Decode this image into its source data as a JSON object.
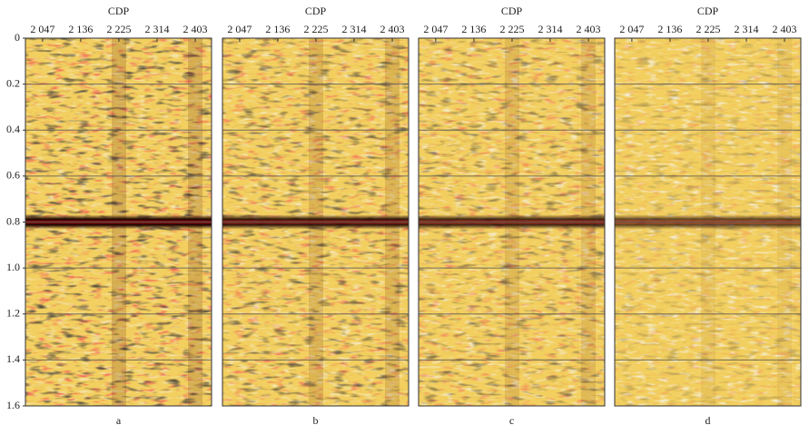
{
  "chart_data": [
    {
      "type": "seismic",
      "xlabel": "CDP",
      "caption": "a",
      "xlim": [
        2007,
        2441
      ],
      "xticks": [
        {
          "value": 2047,
          "label": "2 047"
        },
        {
          "value": 2136,
          "label": "2 136"
        },
        {
          "value": 2225,
          "label": "2 225"
        },
        {
          "value": 2314,
          "label": "2 314"
        },
        {
          "value": 2403,
          "label": "2 403"
        }
      ],
      "ylim": [
        0,
        1.6
      ],
      "yticks": [
        0,
        0.2,
        0.4,
        0.6,
        0.8,
        {
          "value": 1,
          "label": "1.0"
        },
        1.2,
        1.4,
        1.6
      ],
      "grid": true
    },
    {
      "type": "seismic",
      "xlabel": "CDP",
      "caption": "b",
      "xlim": [
        2007,
        2441
      ],
      "xticks": [
        {
          "value": 2047,
          "label": "2 047"
        },
        {
          "value": 2136,
          "label": "2 136"
        },
        {
          "value": 2225,
          "label": "2 225"
        },
        {
          "value": 2314,
          "label": "2 314"
        },
        {
          "value": 2403,
          "label": "2 403"
        }
      ],
      "ylim": [
        0,
        1.6
      ],
      "grid": true
    },
    {
      "type": "seismic",
      "xlabel": "CDP",
      "caption": "c",
      "xlim": [
        2007,
        2441
      ],
      "xticks": [
        {
          "value": 2047,
          "label": "2 047"
        },
        {
          "value": 2136,
          "label": "2 136"
        },
        {
          "value": 2225,
          "label": "2 225"
        },
        {
          "value": 2314,
          "label": "2 314"
        },
        {
          "value": 2403,
          "label": "2 403"
        }
      ],
      "ylim": [
        0,
        1.6
      ],
      "grid": true
    },
    {
      "type": "seismic",
      "xlabel": "CDP",
      "caption": "d",
      "xlim": [
        2007,
        2441
      ],
      "xticks": [
        {
          "value": 2047,
          "label": "2 047"
        },
        {
          "value": 2136,
          "label": "2 136"
        },
        {
          "value": 2225,
          "label": "2 225"
        },
        {
          "value": 2314,
          "label": "2 314"
        },
        {
          "value": 2403,
          "label": "2 403"
        }
      ],
      "ylim": [
        0,
        1.6
      ],
      "grid": true
    }
  ]
}
